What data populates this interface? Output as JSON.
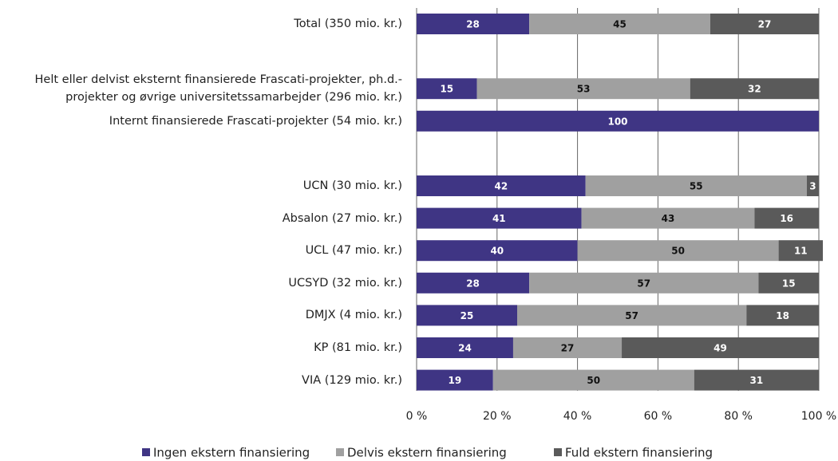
{
  "chart_data": {
    "type": "stacked_barh",
    "categories": [
      "Total (350 mio. kr.)",
      null,
      "Helt eller delvist eksternt finansierede Frascati-projekter, ph.d.-\nprojekter og øvrige universitetssamarbejder (296 mio. kr.)",
      "Internt finansierede Frascati-projekter (54 mio. kr.)",
      null,
      "UCN (30 mio. kr.)",
      "Absalon (27 mio. kr.)",
      "UCL (47 mio. kr.)",
      "UCSYD (32 mio. kr.)",
      "DMJX (4 mio. kr.)",
      "KP (81 mio. kr.)",
      "VIA (129 mio. kr.)"
    ],
    "series": [
      {
        "name": "Ingen ekstern finansiering",
        "color": "#3f3584",
        "label_color": "#ffffff",
        "values": [
          28,
          null,
          15,
          100,
          null,
          42,
          41,
          40,
          28,
          25,
          24,
          19
        ]
      },
      {
        "name": "Delvis ekstern finansiering",
        "color": "#a0a0a0",
        "label_color": "#111111",
        "values": [
          45,
          null,
          53,
          null,
          null,
          55,
          43,
          50,
          57,
          57,
          27,
          50
        ]
      },
      {
        "name": "Fuld ekstern finansiering",
        "color": "#5a5a5a",
        "label_color": "#ffffff",
        "values": [
          27,
          null,
          32,
          null,
          null,
          3,
          16,
          11,
          15,
          18,
          49,
          31
        ]
      }
    ],
    "xlim": [
      0,
      100
    ],
    "xticks": [
      {
        "value": 0,
        "label": "0 %"
      },
      {
        "value": 20,
        "label": "20 %"
      },
      {
        "value": 40,
        "label": "40 %"
      },
      {
        "value": 60,
        "label": "60 %"
      },
      {
        "value": 80,
        "label": "80 %"
      },
      {
        "value": 100,
        "label": "100 %"
      }
    ],
    "grid": true,
    "legend": "bottom"
  }
}
